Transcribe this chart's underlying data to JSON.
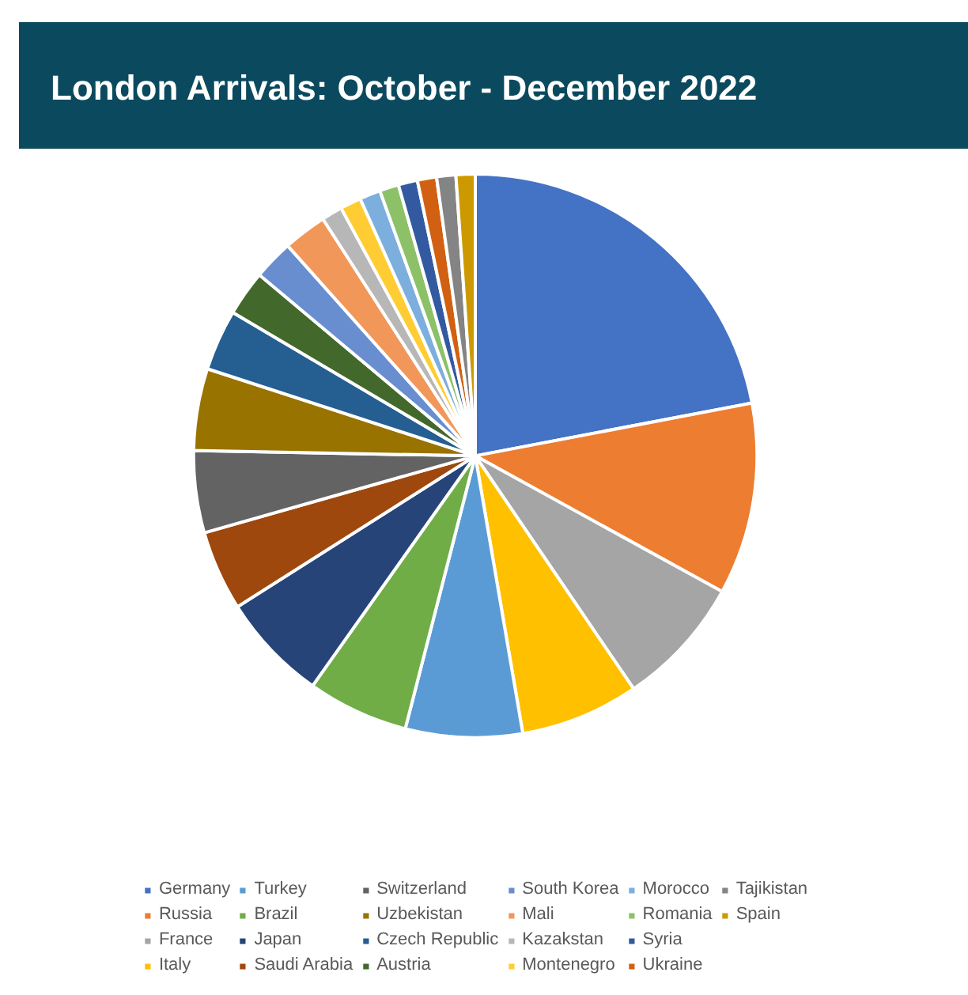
{
  "chart_data": {
    "type": "pie",
    "title": "London Arrivals: October - December 2022",
    "categories": [
      "Germany",
      "Russia",
      "France",
      "Italy",
      "Turkey",
      "Brazil",
      "Japan",
      "Saudi Arabia",
      "Switzerland",
      "Uzbekistan",
      "Czech Republic",
      "Austria",
      "South Korea",
      "Mali",
      "Kazakstan",
      "Montenegro",
      "Morocco",
      "Romania",
      "Syria",
      "Ukraine",
      "Tajikistan",
      "Spain"
    ],
    "values": [
      22,
      11,
      7.5,
      6.8,
      6.7,
      5.8,
      6.2,
      4.6,
      4.7,
      4.7,
      3.5,
      2.6,
      2.3,
      2.5,
      1.2,
      1.2,
      1.2,
      1.1,
      1.1,
      1.1,
      1.1,
      1.1
    ],
    "colors": [
      "#4472c4",
      "#ed7d31",
      "#a5a5a5",
      "#ffc000",
      "#5b9bd5",
      "#70ad47",
      "#264478",
      "#9e480e",
      "#636363",
      "#997300",
      "#255e91",
      "#43682b",
      "#698ed0",
      "#f1975a",
      "#b7b7b7",
      "#ffcd33",
      "#7cafdd",
      "#8cc168",
      "#335aa1",
      "#d26012",
      "#848484",
      "#cc9a00"
    ],
    "legend": "bottom"
  }
}
